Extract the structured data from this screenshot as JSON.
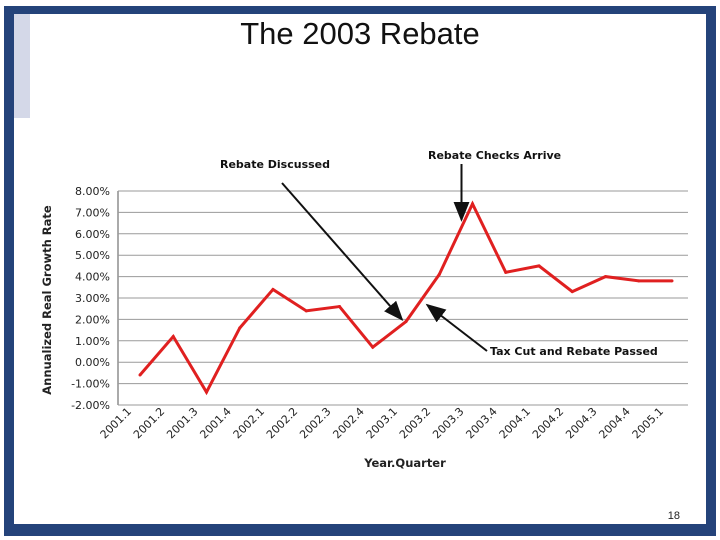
{
  "slide": {
    "title": "The 2003 Rebate",
    "page_number": "18"
  },
  "colors": {
    "frame": "#24437a",
    "series": "#e02020",
    "grid": "#9a9a9a",
    "annotation": "#111111"
  },
  "chart_data": {
    "type": "line",
    "title": "",
    "xlabel": "Year.Quarter",
    "ylabel": "Annualized Real Growth Rate",
    "ylim": [
      -2,
      8
    ],
    "ytick_labels": [
      "-2.00%",
      "-1.00%",
      "0.00%",
      "1.00%",
      "2.00%",
      "3.00%",
      "4.00%",
      "5.00%",
      "6.00%",
      "7.00%",
      "8.00%"
    ],
    "categories": [
      "2001.1",
      "2001.2",
      "2001.3",
      "2001.4",
      "2002.1",
      "2002.2",
      "2002.3",
      "2002.4",
      "2003.1",
      "2003.2",
      "2003.3",
      "2003.4",
      "2004.1",
      "2004.2",
      "2004.3",
      "2004.4",
      "2005.1"
    ],
    "series": [
      {
        "name": "Annualized Real Growth Rate",
        "values": [
          -0.6,
          1.2,
          -1.4,
          1.6,
          3.4,
          2.4,
          2.6,
          0.7,
          1.9,
          4.1,
          7.4,
          4.2,
          4.5,
          3.3,
          4.0,
          3.8,
          3.8
        ]
      }
    ],
    "annotations": [
      {
        "text": "Rebate Discussed",
        "points_to": "2003.1"
      },
      {
        "text": "Rebate Checks Arrive",
        "points_to": "2003.3"
      },
      {
        "text": "Tax Cut and Rebate Passed",
        "points_to": "2003.2"
      }
    ],
    "grid": true
  }
}
